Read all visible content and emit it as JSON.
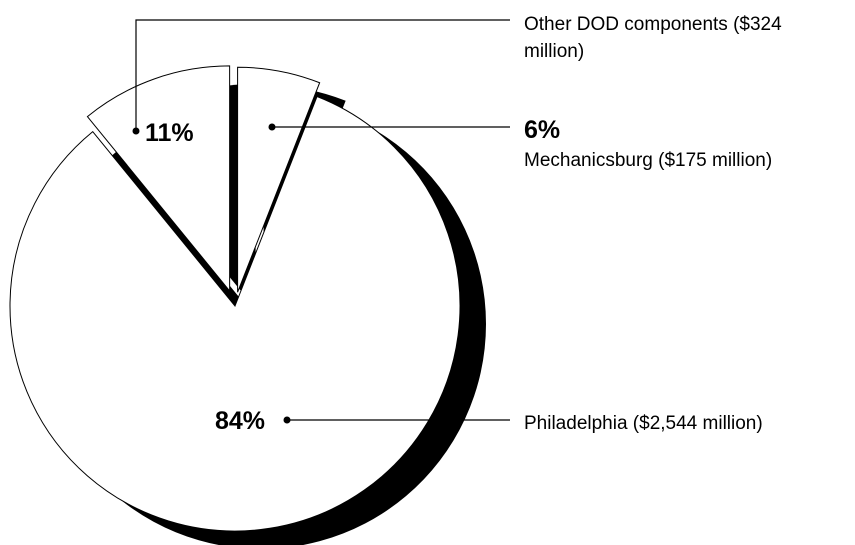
{
  "chart_data": {
    "type": "pie",
    "title": "",
    "categories": [
      "Other DOD components ($324 million)",
      "Mechanicsburg ($175 million)",
      "Philadelphia ($2,544 million)"
    ],
    "values": [
      11,
      6,
      84
    ],
    "amounts_millions": [
      324,
      175,
      2544
    ],
    "slices": [
      {
        "name_line1": "Other DOD components ($324",
        "name_line2": "million)",
        "percent_label": "11%",
        "value": 11
      },
      {
        "name_line1": "Mechanicsburg ($175 million)",
        "name_line2": "",
        "percent_label": "6%",
        "value": 6
      },
      {
        "name_line1": "Philadelphia ($2,544 million)",
        "name_line2": "",
        "percent_label": "84%",
        "value": 84
      }
    ],
    "legend": "none",
    "colors": {
      "slice_fill": "#ffffff",
      "outline": "#000000",
      "shadow": "#000000"
    }
  }
}
